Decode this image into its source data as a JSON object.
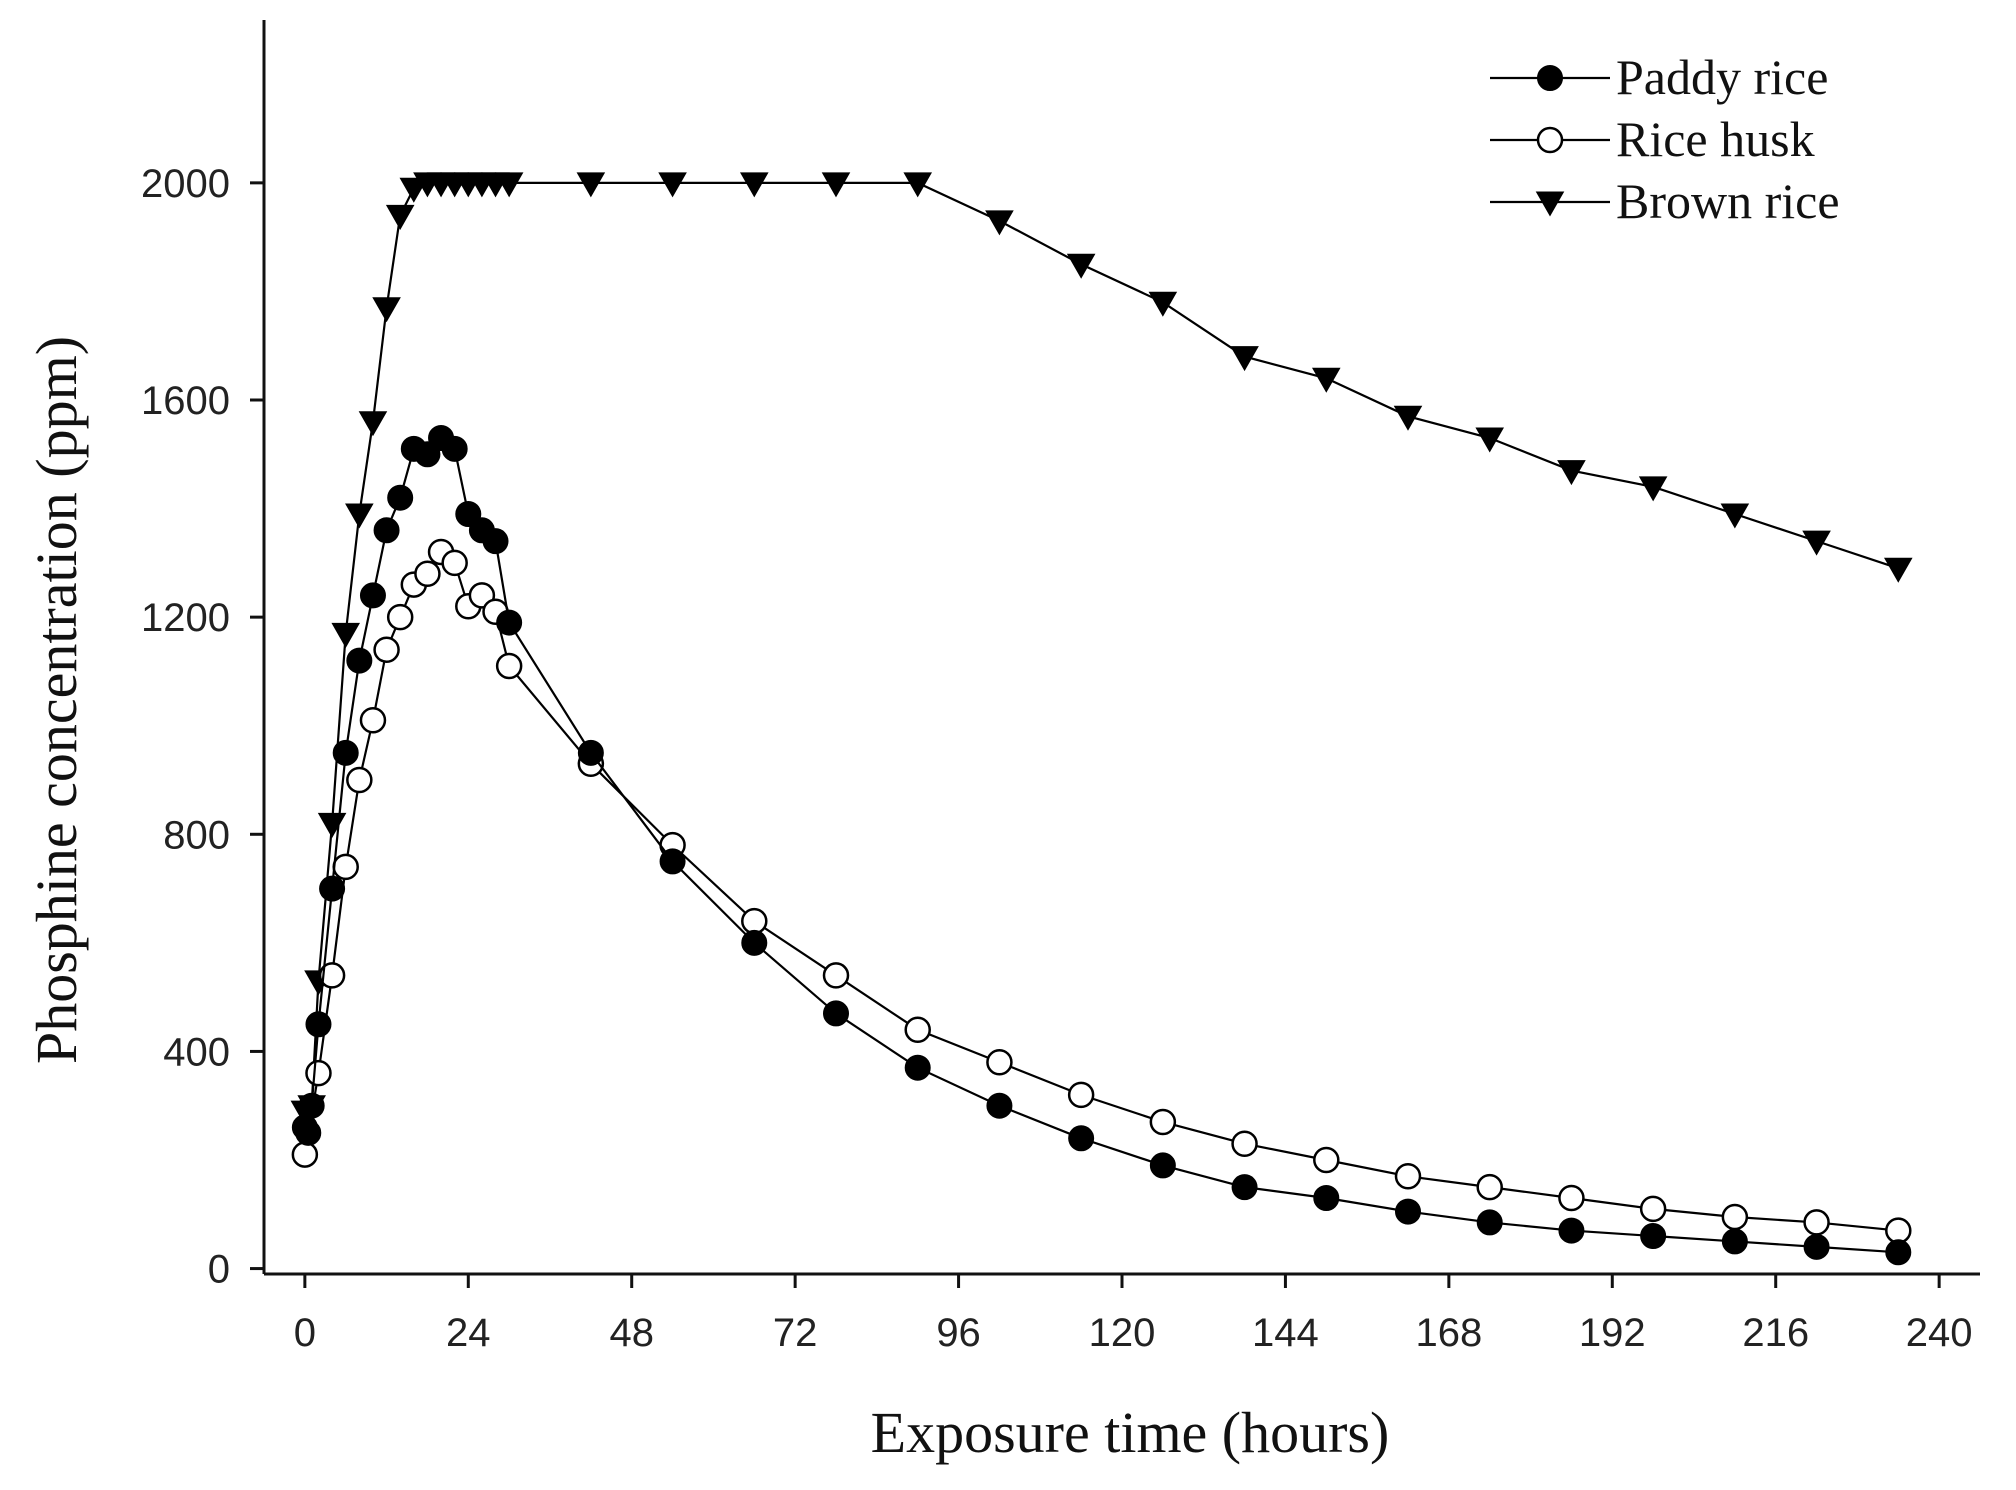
{
  "chart_data": {
    "type": "line",
    "title": "",
    "xlabel": "Exposure time (hours)",
    "ylabel": "Phosphine concentration (ppm)",
    "xlim": [
      -6,
      246
    ],
    "ylim": [
      -10,
      2300
    ],
    "xticks": [
      0,
      24,
      48,
      72,
      96,
      120,
      144,
      168,
      192,
      216,
      240
    ],
    "yticks": [
      0,
      400,
      800,
      1200,
      1600,
      2000
    ],
    "grid": false,
    "legend_position": "top-right",
    "series": [
      {
        "name": "Paddy rice",
        "marker": "filled-circle",
        "x": [
          0,
          0.5,
          1,
          2,
          4,
          6,
          8,
          10,
          12,
          14,
          16,
          18,
          20,
          22,
          24,
          26,
          28,
          30,
          42,
          54,
          66,
          78,
          90,
          102,
          114,
          126,
          138,
          150,
          162,
          174,
          186,
          198,
          210,
          222,
          234
        ],
        "y": [
          260,
          250,
          300,
          450,
          700,
          950,
          1120,
          1240,
          1360,
          1420,
          1510,
          1500,
          1530,
          1510,
          1390,
          1360,
          1340,
          1190,
          950,
          750,
          600,
          470,
          370,
          300,
          240,
          190,
          150,
          130,
          105,
          85,
          70,
          60,
          50,
          40,
          30
        ]
      },
      {
        "name": "Rice husk",
        "marker": "open-circle",
        "x": [
          0,
          2,
          4,
          6,
          8,
          10,
          12,
          14,
          16,
          18,
          20,
          22,
          24,
          26,
          28,
          30,
          42,
          54,
          66,
          78,
          90,
          102,
          114,
          126,
          138,
          150,
          162,
          174,
          186,
          198,
          210,
          222,
          234
        ],
        "y": [
          210,
          360,
          540,
          740,
          900,
          1010,
          1140,
          1200,
          1260,
          1280,
          1320,
          1300,
          1220,
          1240,
          1210,
          1110,
          930,
          780,
          640,
          540,
          440,
          380,
          320,
          270,
          230,
          200,
          170,
          150,
          130,
          110,
          95,
          85,
          70
        ]
      },
      {
        "name": "Brown rice",
        "marker": "filled-triangle-down",
        "x": [
          0,
          1,
          2,
          4,
          6,
          8,
          10,
          12,
          14,
          16,
          18,
          20,
          22,
          24,
          26,
          28,
          30,
          42,
          54,
          66,
          78,
          90,
          102,
          114,
          126,
          138,
          150,
          162,
          174,
          186,
          198,
          210,
          222,
          234
        ],
        "y": [
          290,
          300,
          530,
          820,
          1170,
          1390,
          1560,
          1770,
          1940,
          1990,
          2000,
          2000,
          2000,
          2000,
          2000,
          2000,
          2000,
          2000,
          2000,
          2000,
          2000,
          2000,
          1930,
          1850,
          1780,
          1680,
          1640,
          1570,
          1530,
          1470,
          1440,
          1390,
          1340,
          1290
        ]
      }
    ]
  }
}
